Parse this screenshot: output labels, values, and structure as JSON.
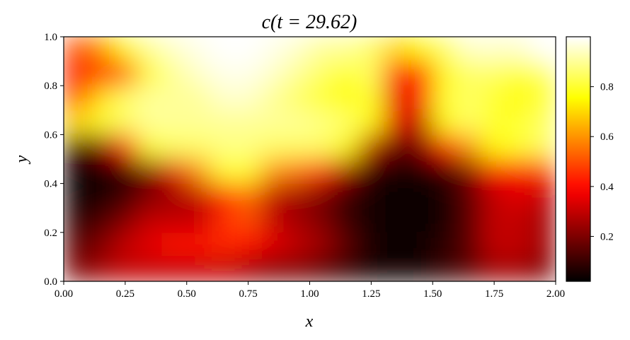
{
  "chart_data": {
    "type": "heatmap",
    "title": "c(t = 29.62)",
    "xlabel": "x",
    "ylabel": "y",
    "xlim": [
      0,
      2
    ],
    "ylim": [
      0,
      1
    ],
    "x_ticks": [
      "0.00",
      "0.25",
      "0.50",
      "0.75",
      "1.00",
      "1.25",
      "1.50",
      "1.75",
      "2.00"
    ],
    "y_ticks": [
      "0.0",
      "0.2",
      "0.4",
      "0.6",
      "0.8",
      "1.0"
    ],
    "colormap": "hot",
    "clim": [
      0.02,
      1.0
    ],
    "colorbar_ticks": [
      "0.2",
      "0.4",
      "0.6",
      "0.8"
    ],
    "grid": false,
    "x": [
      0.05,
      0.15,
      0.25,
      0.35,
      0.45,
      0.55,
      0.65,
      0.75,
      0.85,
      0.95,
      1.05,
      1.15,
      1.25,
      1.35,
      1.45,
      1.55,
      1.65,
      1.75,
      1.85,
      1.95
    ],
    "y": [
      0.95,
      0.85,
      0.75,
      0.65,
      0.55,
      0.45,
      0.35,
      0.25,
      0.15,
      0.05
    ],
    "z_columns": [
      [
        0.5,
        0.4,
        0.5,
        0.7,
        0.1,
        0.03,
        0.03,
        0.08,
        0.15,
        0.2
      ],
      [
        0.6,
        0.45,
        0.7,
        0.8,
        0.2,
        0.05,
        0.05,
        0.12,
        0.2,
        0.25
      ],
      [
        0.75,
        0.5,
        0.85,
        0.85,
        0.4,
        0.1,
        0.1,
        0.2,
        0.3,
        0.3
      ],
      [
        0.9,
        0.8,
        0.9,
        0.9,
        0.8,
        0.2,
        0.2,
        0.3,
        0.35,
        0.3
      ],
      [
        0.95,
        0.9,
        0.9,
        0.9,
        0.85,
        0.35,
        0.25,
        0.3,
        0.4,
        0.3
      ],
      [
        0.98,
        0.95,
        0.9,
        0.9,
        0.85,
        0.6,
        0.3,
        0.3,
        0.4,
        0.3
      ],
      [
        1.0,
        0.98,
        0.95,
        0.9,
        0.88,
        0.8,
        0.45,
        0.45,
        0.45,
        0.3
      ],
      [
        1.0,
        0.98,
        0.95,
        0.9,
        0.88,
        0.8,
        0.55,
        0.5,
        0.4,
        0.25
      ],
      [
        0.98,
        0.95,
        0.9,
        0.9,
        0.85,
        0.6,
        0.3,
        0.3,
        0.35,
        0.2
      ],
      [
        0.95,
        0.9,
        0.85,
        0.9,
        0.85,
        0.55,
        0.25,
        0.25,
        0.3,
        0.2
      ],
      [
        0.9,
        0.85,
        0.8,
        0.88,
        0.85,
        0.45,
        0.2,
        0.2,
        0.25,
        0.15
      ],
      [
        0.9,
        0.8,
        0.75,
        0.85,
        0.75,
        0.25,
        0.1,
        0.1,
        0.15,
        0.1
      ],
      [
        0.85,
        0.85,
        0.8,
        0.75,
        0.3,
        0.08,
        0.05,
        0.05,
        0.05,
        0.05
      ],
      [
        0.7,
        0.45,
        0.35,
        0.35,
        0.15,
        0.05,
        0.03,
        0.03,
        0.03,
        0.05
      ],
      [
        0.75,
        0.4,
        0.4,
        0.3,
        0.2,
        0.05,
        0.03,
        0.03,
        0.03,
        0.05
      ],
      [
        0.85,
        0.75,
        0.8,
        0.75,
        0.4,
        0.1,
        0.05,
        0.05,
        0.08,
        0.1
      ],
      [
        0.95,
        0.85,
        0.85,
        0.85,
        0.6,
        0.2,
        0.15,
        0.15,
        0.15,
        0.15
      ],
      [
        0.95,
        0.85,
        0.8,
        0.8,
        0.75,
        0.4,
        0.3,
        0.3,
        0.3,
        0.25
      ],
      [
        0.95,
        0.8,
        0.75,
        0.8,
        0.8,
        0.4,
        0.35,
        0.3,
        0.3,
        0.25
      ],
      [
        1.0,
        0.85,
        0.8,
        0.85,
        0.85,
        0.45,
        0.3,
        0.25,
        0.25,
        0.2
      ]
    ]
  }
}
